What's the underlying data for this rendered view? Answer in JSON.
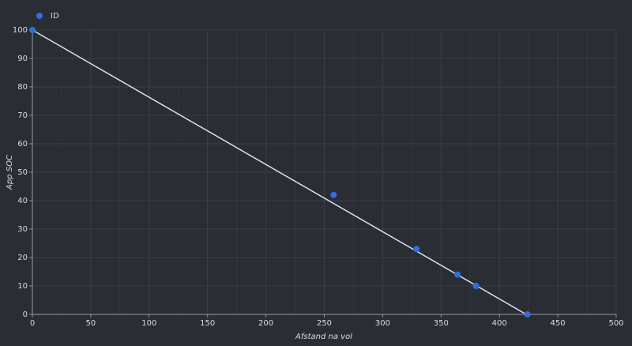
{
  "chart_data": {
    "type": "scatter",
    "x_label": "Afstand na vol",
    "y_label": "App SOC",
    "series": [
      {
        "name": "ID",
        "color": "#2f6fe0",
        "x": [
          0,
          258,
          329,
          364,
          380,
          424
        ],
        "values": [
          100,
          42,
          23,
          14,
          10,
          0
        ]
      }
    ],
    "trend_line": {
      "color": "#d8e0f0",
      "x": [
        0,
        423
      ],
      "values": [
        100,
        0
      ]
    },
    "xlim": [
      0,
      500
    ],
    "xticks": [
      0,
      50,
      100,
      150,
      200,
      250,
      300,
      350,
      400,
      450,
      500
    ],
    "ylim": [
      0,
      100
    ],
    "yticks": [
      0,
      10,
      20,
      30,
      40,
      50,
      60,
      70,
      80,
      90,
      100
    ],
    "grid": true,
    "legend": "top-left"
  }
}
